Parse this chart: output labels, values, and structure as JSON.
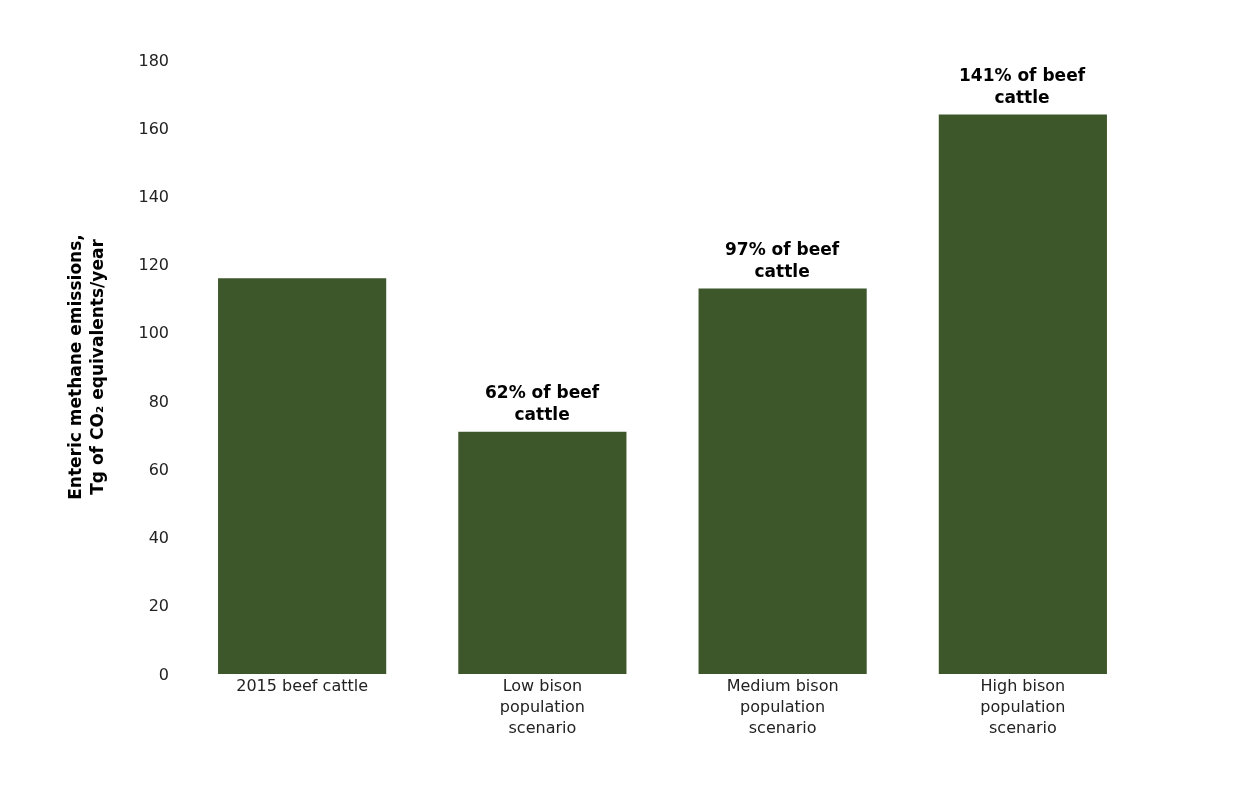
{
  "chart_data": {
    "type": "bar",
    "ylabel": "Enteric methane emissions, Tg of CO₂ equivalents/year",
    "categories": [
      "2015 beef cattle",
      "Low bison population scenario",
      "Medium bison population scenario",
      "High bison population scenario"
    ],
    "values": [
      116,
      71,
      113,
      164
    ],
    "color": "#3d572b",
    "ylim": [
      0,
      180
    ],
    "yticks": [
      0,
      20,
      40,
      60,
      80,
      100,
      120,
      140,
      160,
      180
    ],
    "annotations": [
      {
        "text": "62% of beef cattle",
        "x": "Low bison population scenario",
        "y": 71
      },
      {
        "text": "97% of beef cattle",
        "x": "Medium bison population scenario",
        "y": 113
      },
      {
        "text": "141% of beef cattle",
        "x": "High bison population scenario",
        "y": 164
      }
    ]
  }
}
